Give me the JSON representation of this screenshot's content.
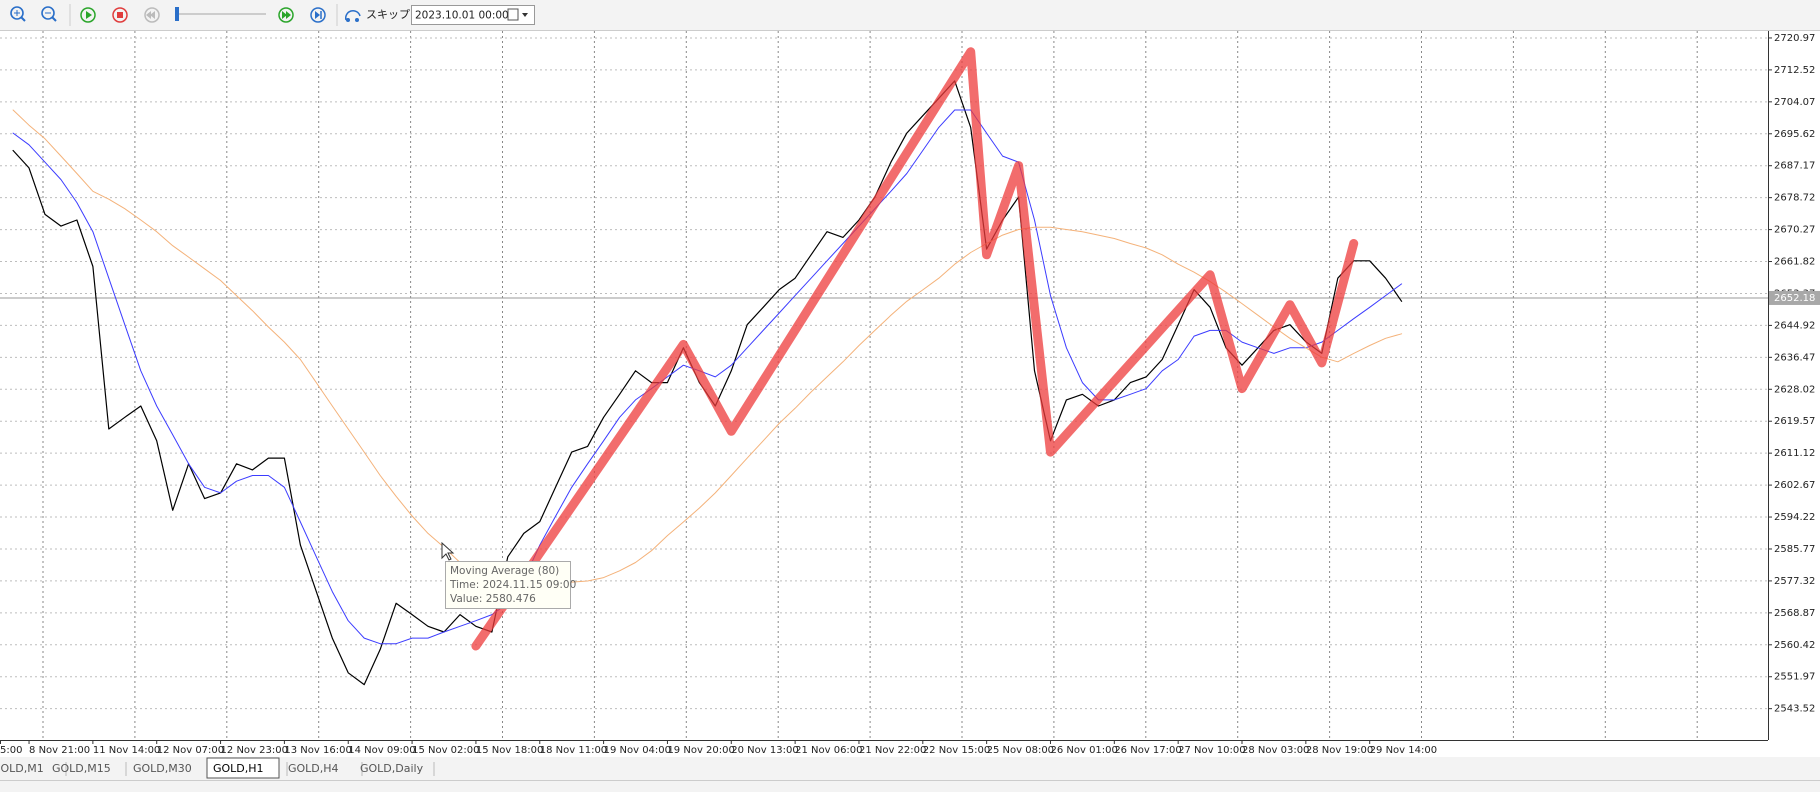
{
  "toolbar": {
    "skip_label": "スキップ",
    "date": "2023.10.01 00:00"
  },
  "chart_data": {
    "type": "line",
    "categories": [
      "5:00",
      null,
      null,
      null,
      "8 Nov 21:00",
      null,
      null,
      null,
      "11 Nov 14:00",
      null,
      null,
      null,
      "12 Nov 07:00",
      null,
      null,
      null,
      "12 Nov 23:00",
      null,
      null,
      null,
      "13 Nov 16:00",
      null,
      null,
      null,
      "14 Nov 09:00",
      null,
      null,
      null,
      "15 Nov 02:00",
      null,
      null,
      null,
      "15 Nov 18:00",
      null,
      null,
      null,
      "18 Nov 11:00",
      null,
      null,
      null,
      "19 Nov 04:00",
      null,
      null,
      null,
      "19 Nov 20:00",
      null,
      null,
      null,
      "20 Nov 13:00",
      null,
      null,
      null,
      "21 Nov 06:00",
      null,
      null,
      null,
      "21 Nov 22:00",
      null,
      null,
      null,
      "22 Nov 15:00",
      null,
      null,
      null,
      "25 Nov 08:00",
      null,
      null,
      null,
      "26 Nov 01:00",
      null,
      null,
      null,
      "26 Nov 17:00",
      null,
      null,
      null,
      "27 Nov 10:00",
      null,
      null,
      null,
      "28 Nov 03:00",
      null,
      null,
      null,
      "28 Nov 19:00",
      null,
      null,
      null,
      "29 Nov 14:00",
      null,
      null
    ],
    "series": [
      {
        "color": "#000000",
        "values": [
          null,
          null,
          null,
          2691.2,
          2686.6,
          2674.3,
          2671.2,
          2672.8,
          2660.5,
          2617.5,
          2620.6,
          2623.6,
          2614.4,
          2596.0,
          2608.3,
          2599.1,
          2600.6,
          2608.3,
          2606.7,
          2609.8,
          2609.8,
          2586.8,
          2574.5,
          2562.2,
          2553.0,
          2549.9,
          2559.2,
          2571.4,
          2568.4,
          2565.3,
          2563.8,
          2568.4,
          2565.3,
          2563.8,
          2583.7,
          2589.9,
          2593.0,
          2602.2,
          2611.4,
          2612.9,
          2620.6,
          2626.7,
          2632.9,
          2629.8,
          2629.8,
          2639.0,
          2629.8,
          2623.6,
          2632.9,
          2645.1,
          2649.7,
          2654.4,
          2657.4,
          2663.6,
          2669.7,
          2668.2,
          2672.8,
          2678.9,
          2688.1,
          2695.8,
          2700.4,
          2705.0,
          2709.6,
          2697.3,
          2665.1,
          2672.8,
          2678.9,
          2632.9,
          2614.4,
          2625.2,
          2626.7,
          2623.6,
          2625.2,
          2629.8,
          2631.3,
          2635.9,
          2645.1,
          2654.4,
          2649.7,
          2639.0,
          2634.4,
          2639.0,
          2643.6,
          2645.1,
          2640.6,
          2637.5,
          2657.4,
          2662.0,
          2662.0,
          2657.4,
          2651.3
        ]
      },
      {
        "color": "#3c3cff",
        "values": [
          null,
          null,
          null,
          2695.8,
          2692.7,
          2688.1,
          2683.5,
          2677.4,
          2669.7,
          2657.4,
          2645.1,
          2632.9,
          2623.6,
          2616.0,
          2608.3,
          2602.1,
          2600.6,
          2603.7,
          2605.2,
          2605.2,
          2602.1,
          2592.9,
          2583.7,
          2574.5,
          2566.8,
          2562.2,
          2560.7,
          2560.7,
          2562.2,
          2562.2,
          2563.8,
          2565.3,
          2566.8,
          2568.4,
          2571.4,
          2577.6,
          2586.8,
          2594.5,
          2602.1,
          2608.3,
          2614.4,
          2620.6,
          2625.2,
          2628.2,
          2631.3,
          2634.4,
          2632.9,
          2631.3,
          2634.4,
          2639.0,
          2643.6,
          2648.2,
          2652.8,
          2657.4,
          2662.0,
          2666.6,
          2671.2,
          2675.8,
          2680.4,
          2685.1,
          2691.2,
          2697.3,
          2701.9,
          2701.9,
          2695.8,
          2689.7,
          2688.1,
          2672.8,
          2652.8,
          2639.0,
          2629.8,
          2625.2,
          2625.2,
          2626.7,
          2628.2,
          2632.9,
          2635.9,
          2642.1,
          2643.6,
          2643.6,
          2640.5,
          2639.0,
          2637.5,
          2639.0,
          2639.0,
          2640.5,
          2643.6,
          2646.7,
          2649.7,
          2652.8,
          2655.9
        ]
      },
      {
        "color": "#f4b27a",
        "values": [
          null,
          null,
          null,
          2701.9,
          2697.9,
          2694.3,
          2689.7,
          2685.1,
          2680.4,
          2678.3,
          2675.8,
          2672.8,
          2669.7,
          2666.0,
          2663.0,
          2659.9,
          2656.8,
          2652.8,
          2648.8,
          2644.5,
          2640.5,
          2635.9,
          2629.8,
          2623.6,
          2617.5,
          2611.4,
          2605.2,
          2599.7,
          2594.5,
          2589.9,
          2586.2,
          2582.2,
          2579.7,
          2578.5,
          2577.6,
          2577.3,
          2577.0,
          2577.0,
          2577.0,
          2577.3,
          2578.2,
          2580.0,
          2582.2,
          2585.3,
          2589.3,
          2592.9,
          2596.6,
          2600.6,
          2605.2,
          2609.8,
          2614.4,
          2619.0,
          2623.0,
          2627.3,
          2631.3,
          2635.3,
          2639.6,
          2643.6,
          2647.6,
          2651.3,
          2654.3,
          2657.4,
          2661.1,
          2664.2,
          2666.6,
          2668.8,
          2670.3,
          2670.9,
          2670.9,
          2670.3,
          2669.7,
          2668.8,
          2667.9,
          2666.6,
          2665.4,
          2663.6,
          2661.1,
          2659.0,
          2656.5,
          2653.7,
          2650.7,
          2647.6,
          2644.5,
          2641.5,
          2639.0,
          2636.5,
          2635.3,
          2637.5,
          2639.6,
          2641.5,
          2642.7
        ]
      },
      {
        "color": "#ee3b3b",
        "x": [
          32,
          45,
          48,
          63,
          64,
          66,
          68,
          78,
          80,
          83,
          85,
          87
        ],
        "values": [
          2560.1,
          2639.9,
          2616.9,
          2717.3,
          2663.6,
          2687.2,
          2611.4,
          2658.3,
          2628.2,
          2650.4,
          2635.0,
          2666.6
        ]
      }
    ],
    "ylim": [
      2535.23,
      2722.81
    ],
    "yticks": [
      2543.52,
      2551.97,
      2560.42,
      2568.87,
      2577.32,
      2585.77,
      2594.22,
      2602.67,
      2611.12,
      2619.57,
      2628.02,
      2636.47,
      2644.92,
      2653.37,
      2661.82,
      2670.27,
      2678.72,
      2687.17,
      2695.62,
      2704.07,
      2712.52,
      2720.97
    ],
    "grid": true,
    "last_price": 2652.18
  },
  "tooltip": {
    "title": "Moving Average (80)",
    "time": "Time: 2024.11.15 09:00",
    "value": "Value: 2580.476"
  },
  "tabs": [
    "GOLD,M1",
    "GOLD,M15",
    "GOLD,M30",
    "GOLD,H1",
    "GOLD,H4",
    "GOLD,Daily"
  ],
  "active_tab": 3
}
